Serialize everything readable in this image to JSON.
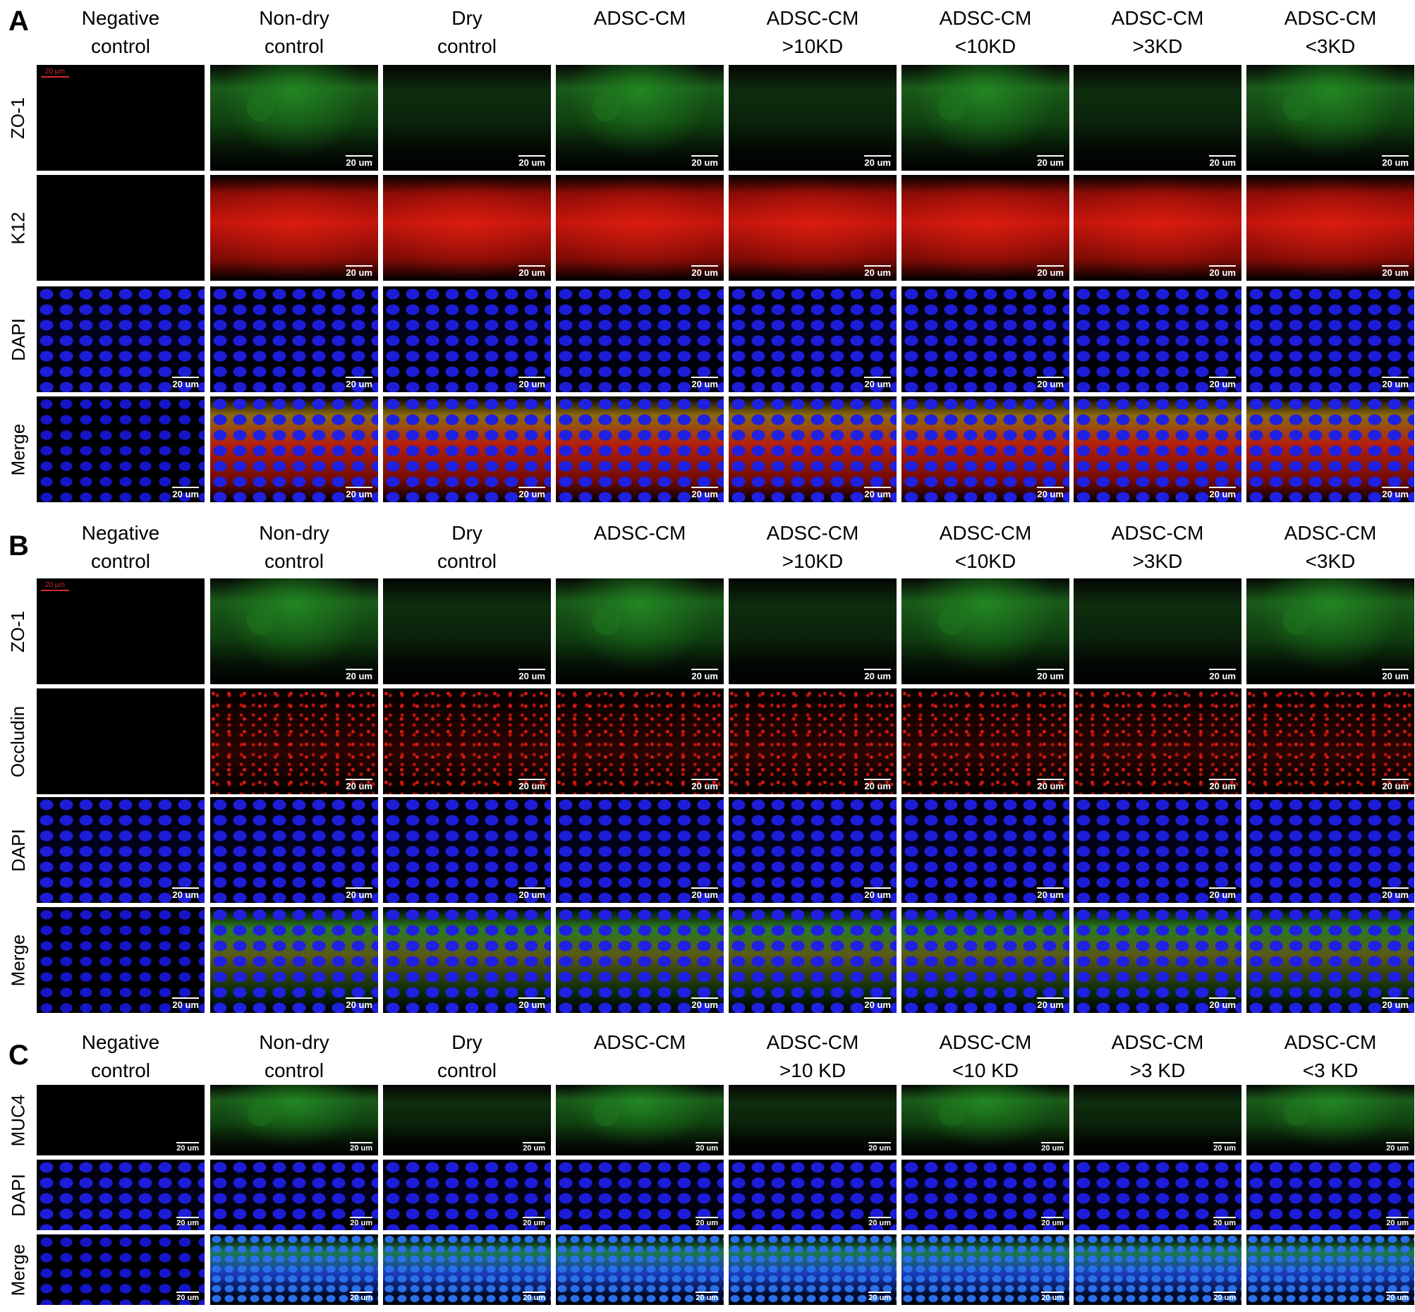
{
  "panels": [
    {
      "letter": "A",
      "columns": [
        "Negative\ncontrol",
        "Non-dry\ncontrol",
        "Dry\ncontrol",
        "ADSC-CM",
        "ADSC-CM\n>10KD",
        "ADSC-CM\n<10KD",
        "ADSC-CM\n>3KD",
        "ADSC-CM\n<3KD"
      ],
      "rows": [
        "ZO-1",
        "K12",
        "DAPI",
        "Merge"
      ]
    },
    {
      "letter": "B",
      "columns": [
        "Negative\ncontrol",
        "Non-dry\ncontrol",
        "Dry\ncontrol",
        "ADSC-CM",
        "ADSC-CM\n>10KD",
        "ADSC-CM\n<10KD",
        "ADSC-CM\n>3KD",
        "ADSC-CM\n<3KD"
      ],
      "rows": [
        "ZO-1",
        "Occludin",
        "DAPI",
        "Merge"
      ]
    },
    {
      "letter": "C",
      "columns": [
        "Negative\ncontrol",
        "Non-dry\ncontrol",
        "Dry\ncontrol",
        "ADSC-CM",
        "ADSC-CM\n>10 KD",
        "ADSC-CM\n<10 KD",
        "ADSC-CM\n>3 KD",
        "ADSC-CM\n<3 KD"
      ],
      "rows": [
        "MUC4",
        "DAPI",
        "Merge"
      ]
    }
  ],
  "scale_label": "20 um",
  "inset_scale_label": "20 µm"
}
